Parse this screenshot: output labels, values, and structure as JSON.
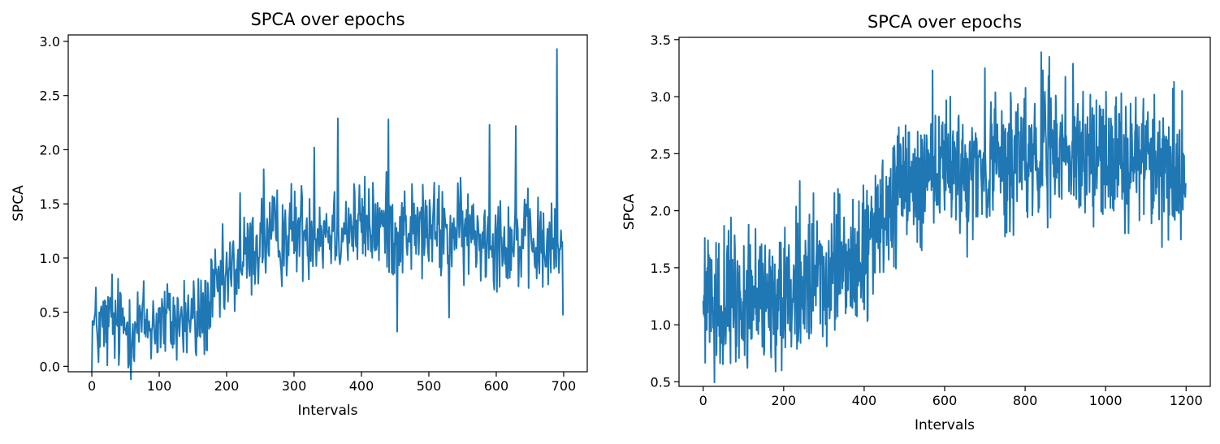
{
  "colors": {
    "series": "#1f77b4"
  },
  "chart_data": [
    {
      "type": "line",
      "title": "SPCA over epochs",
      "xlabel": "Intervals",
      "ylabel": "SPCA",
      "xlim": [
        -35,
        735
      ],
      "ylim": [
        -0.05,
        3.06
      ],
      "xticks": [
        0,
        100,
        200,
        300,
        400,
        500,
        600,
        700
      ],
      "yticks": [
        0.0,
        0.5,
        1.0,
        1.5,
        2.0,
        2.5,
        3.0
      ],
      "grid": false,
      "series": [
        {
          "color": "#1f77b4",
          "x_range": [
            0,
            699
          ],
          "trend_keypoints": [
            [
              0,
              0.35
            ],
            [
              100,
              0.4
            ],
            [
              160,
              0.45
            ],
            [
              200,
              0.8
            ],
            [
              250,
              1.15
            ],
            [
              300,
              1.25
            ],
            [
              400,
              1.3
            ],
            [
              500,
              1.25
            ],
            [
              600,
              1.2
            ],
            [
              699,
              1.05
            ]
          ],
          "noise_amplitude": 0.22,
          "spikes": [
            [
              30,
              0.85
            ],
            [
              155,
              0.1
            ],
            [
              170,
              0.15
            ],
            [
              220,
              1.6
            ],
            [
              255,
              1.82
            ],
            [
              330,
              2.02
            ],
            [
              365,
              2.29
            ],
            [
              440,
              2.28
            ],
            [
              453,
              0.32
            ],
            [
              530,
              0.45
            ],
            [
              590,
              2.23
            ],
            [
              629,
              2.22
            ],
            [
              690,
              2.93
            ],
            [
              699,
              0.47
            ]
          ]
        }
      ]
    },
    {
      "type": "line",
      "title": "SPCA over epochs",
      "xlabel": "Intervals",
      "ylabel": "SPCA",
      "xlim": [
        -60,
        1260
      ],
      "ylim": [
        0.46,
        3.52
      ],
      "xticks": [
        0,
        200,
        400,
        600,
        800,
        1000,
        1200
      ],
      "yticks": [
        0.5,
        1.0,
        1.5,
        2.0,
        2.5,
        3.0,
        3.5
      ],
      "grid": false,
      "series": [
        {
          "color": "#1f77b4",
          "x_range": [
            0,
            1199
          ],
          "trend_keypoints": [
            [
              0,
              1.15
            ],
            [
              100,
              1.2
            ],
            [
              200,
              1.3
            ],
            [
              300,
              1.4
            ],
            [
              400,
              1.6
            ],
            [
              450,
              1.95
            ],
            [
              500,
              2.2
            ],
            [
              600,
              2.35
            ],
            [
              700,
              2.35
            ],
            [
              800,
              2.5
            ],
            [
              900,
              2.5
            ],
            [
              1000,
              2.5
            ],
            [
              1100,
              2.45
            ],
            [
              1199,
              2.3
            ]
          ],
          "noise_amplitude": 0.28,
          "spikes": [
            [
              180,
              0.59
            ],
            [
              195,
              0.6
            ],
            [
              240,
              2.26
            ],
            [
              570,
              3.23
            ],
            [
              700,
              3.25
            ],
            [
              840,
              3.39
            ],
            [
              860,
              3.35
            ],
            [
              1140,
              1.68
            ],
            [
              1170,
              3.13
            ],
            [
              1190,
              3.05
            ]
          ]
        }
      ]
    }
  ]
}
